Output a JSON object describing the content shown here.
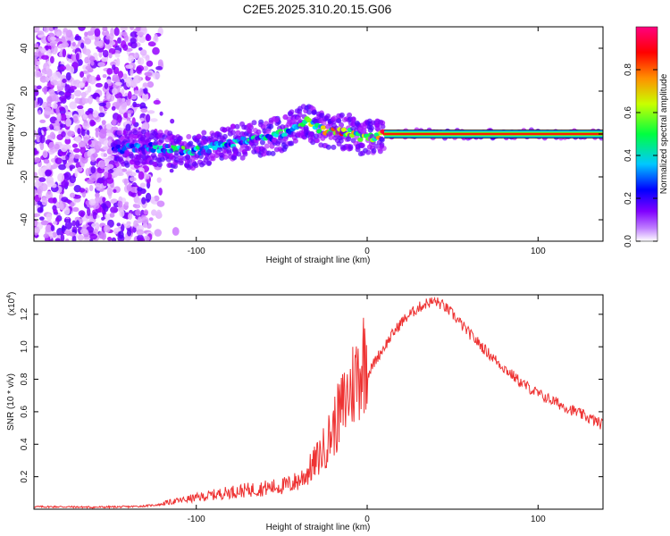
{
  "figure": {
    "title": "C2E5.2025.310.20.15.G06"
  },
  "chart_data": [
    {
      "type": "heatmap",
      "title": "C2E5.2025.310.20.15.G06",
      "xlabel": "Height of straight line (km)",
      "ylabel": "Frequency (Hz)",
      "xlim": [
        -195,
        138
      ],
      "ylim": [
        -50,
        50
      ],
      "xticks": [
        -100,
        0,
        100
      ],
      "xtick_labels": [
        "-100",
        "0",
        "100"
      ],
      "yticks": [
        -40,
        -20,
        0,
        20,
        40
      ],
      "ytick_labels": [
        "-40",
        "-20",
        "0",
        "20",
        "40"
      ],
      "colorbar": {
        "label": "Normalized spectral amplitude",
        "range": [
          0,
          1
        ],
        "ticks": [
          0.0,
          0.2,
          0.4,
          0.6,
          0.8
        ],
        "tick_labels": [
          "0.0",
          "0.2",
          "0.4",
          "0.6",
          "0.8"
        ],
        "colors": [
          "#ffffff",
          "#a000ff",
          "#0000ff",
          "#00e0ff",
          "#00ff40",
          "#e0ff00",
          "#ff8000",
          "#ff0000",
          "#ff0080"
        ]
      },
      "ridge": {
        "x": [
          -145,
          -130,
          -115,
          -100,
          -85,
          -70,
          -60,
          -50,
          -40,
          -35,
          -30,
          -20,
          -10,
          -5,
          0,
          10,
          30,
          60,
          100,
          138
        ],
        "freq": [
          -7,
          -6,
          -7,
          -8,
          -5,
          -3,
          -2,
          0,
          4,
          6,
          3,
          1,
          1,
          -1,
          -2,
          0,
          0,
          0,
          0,
          0
        ],
        "amplitude": [
          0.25,
          0.35,
          0.45,
          0.5,
          0.45,
          0.4,
          0.4,
          0.45,
          0.5,
          0.55,
          0.6,
          0.7,
          0.75,
          0.6,
          0.55,
          0.85,
          0.9,
          0.9,
          0.9,
          0.9
        ]
      },
      "noise_region": {
        "x_from": -195,
        "x_to": -120,
        "amplitude": 0.15
      }
    },
    {
      "type": "line",
      "xlabel": "Height of straight line (km)",
      "ylabel": "SNR (10 * v/v)",
      "y_scale_label": "(x10",
      "y_scale_exponent": "4",
      "xlim": [
        -195,
        138
      ],
      "ylim": [
        0,
        1.32
      ],
      "xticks": [
        -100,
        0,
        100
      ],
      "xtick_labels": [
        "-100",
        "0",
        "100"
      ],
      "yticks": [
        0.2,
        0.4,
        0.6,
        0.8,
        1.0,
        1.2
      ],
      "ytick_labels": [
        "0.2",
        "0.4",
        "0.6",
        "0.8",
        "1.0",
        "1.2"
      ],
      "series": [
        {
          "name": "SNR",
          "color": "#ee3333",
          "x": [
            -195,
            -180,
            -160,
            -140,
            -130,
            -120,
            -110,
            -100,
            -90,
            -80,
            -70,
            -60,
            -50,
            -45,
            -40,
            -35,
            -30,
            -25,
            -20,
            -15,
            -10,
            -5,
            0,
            5,
            10,
            15,
            20,
            25,
            30,
            35,
            40,
            45,
            50,
            60,
            70,
            80,
            90,
            100,
            110,
            120,
            130,
            138
          ],
          "y": [
            0.015,
            0.015,
            0.012,
            0.015,
            0.02,
            0.03,
            0.045,
            0.06,
            0.075,
            0.09,
            0.1,
            0.11,
            0.12,
            0.13,
            0.15,
            0.19,
            0.25,
            0.32,
            0.42,
            0.52,
            0.62,
            0.72,
            0.82,
            0.92,
            1.0,
            1.08,
            1.15,
            1.2,
            1.24,
            1.27,
            1.28,
            1.25,
            1.2,
            1.08,
            0.97,
            0.87,
            0.78,
            0.71,
            0.66,
            0.61,
            0.56,
            0.52
          ]
        }
      ]
    }
  ]
}
